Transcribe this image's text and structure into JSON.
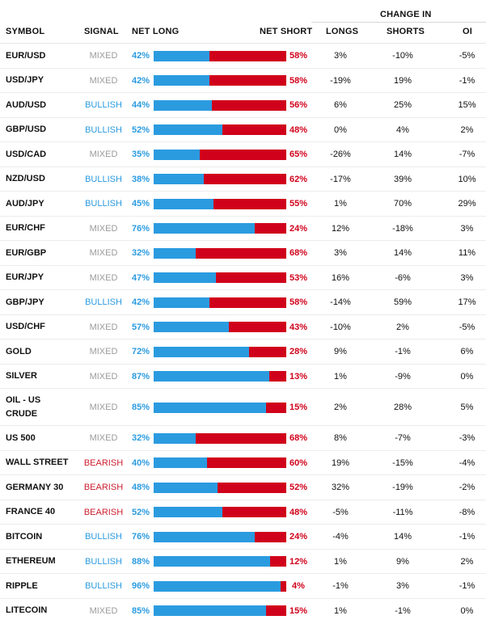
{
  "header": {
    "symbol": "SYMBOL",
    "signal": "SIGNAL",
    "net_long": "NET LONG",
    "net_short": "NET SHORT",
    "change_in": "CHANGE IN",
    "longs": "LONGS",
    "shorts": "SHORTS",
    "oi": "OI"
  },
  "colors": {
    "long": "#2b9be0",
    "short": "#d0021b",
    "mixed": "#9b9b9b",
    "bullish": "#2b9be0",
    "bearish": "#cc1f2f"
  },
  "rows": [
    {
      "symbol": "EUR/USD",
      "signal": "MIXED",
      "net_long": "42%",
      "net_short": "58%",
      "long_pct": 42,
      "longs": "3%",
      "shorts": "-10%",
      "oi": "-5%"
    },
    {
      "symbol": "USD/JPY",
      "signal": "MIXED",
      "net_long": "42%",
      "net_short": "58%",
      "long_pct": 42,
      "longs": "-19%",
      "shorts": "19%",
      "oi": "-1%"
    },
    {
      "symbol": "AUD/USD",
      "signal": "BULLISH",
      "net_long": "44%",
      "net_short": "56%",
      "long_pct": 44,
      "longs": "6%",
      "shorts": "25%",
      "oi": "15%"
    },
    {
      "symbol": "GBP/USD",
      "signal": "BULLISH",
      "net_long": "52%",
      "net_short": "48%",
      "long_pct": 52,
      "longs": "0%",
      "shorts": "4%",
      "oi": "2%"
    },
    {
      "symbol": "USD/CAD",
      "signal": "MIXED",
      "net_long": "35%",
      "net_short": "65%",
      "long_pct": 35,
      "longs": "-26%",
      "shorts": "14%",
      "oi": "-7%"
    },
    {
      "symbol": "NZD/USD",
      "signal": "BULLISH",
      "net_long": "38%",
      "net_short": "62%",
      "long_pct": 38,
      "longs": "-17%",
      "shorts": "39%",
      "oi": "10%"
    },
    {
      "symbol": "AUD/JPY",
      "signal": "BULLISH",
      "net_long": "45%",
      "net_short": "55%",
      "long_pct": 45,
      "longs": "1%",
      "shorts": "70%",
      "oi": "29%"
    },
    {
      "symbol": "EUR/CHF",
      "signal": "MIXED",
      "net_long": "76%",
      "net_short": "24%",
      "long_pct": 76,
      "longs": "12%",
      "shorts": "-18%",
      "oi": "3%"
    },
    {
      "symbol": "EUR/GBP",
      "signal": "MIXED",
      "net_long": "32%",
      "net_short": "68%",
      "long_pct": 32,
      "longs": "3%",
      "shorts": "14%",
      "oi": "11%"
    },
    {
      "symbol": "EUR/JPY",
      "signal": "MIXED",
      "net_long": "47%",
      "net_short": "53%",
      "long_pct": 47,
      "longs": "16%",
      "shorts": "-6%",
      "oi": "3%"
    },
    {
      "symbol": "GBP/JPY",
      "signal": "BULLISH",
      "net_long": "42%",
      "net_short": "58%",
      "long_pct": 42,
      "longs": "-14%",
      "shorts": "59%",
      "oi": "17%"
    },
    {
      "symbol": "USD/CHF",
      "signal": "MIXED",
      "net_long": "57%",
      "net_short": "43%",
      "long_pct": 57,
      "longs": "-10%",
      "shorts": "2%",
      "oi": "-5%"
    },
    {
      "symbol": "GOLD",
      "signal": "MIXED",
      "net_long": "72%",
      "net_short": "28%",
      "long_pct": 72,
      "longs": "9%",
      "shorts": "-1%",
      "oi": "6%"
    },
    {
      "symbol": "SILVER",
      "signal": "MIXED",
      "net_long": "87%",
      "net_short": "13%",
      "long_pct": 87,
      "longs": "1%",
      "shorts": "-9%",
      "oi": "0%"
    },
    {
      "symbol": "OIL - US CRUDE",
      "signal": "MIXED",
      "net_long": "85%",
      "net_short": "15%",
      "long_pct": 85,
      "longs": "2%",
      "shorts": "28%",
      "oi": "5%"
    },
    {
      "symbol": "US 500",
      "signal": "MIXED",
      "net_long": "32%",
      "net_short": "68%",
      "long_pct": 32,
      "longs": "8%",
      "shorts": "-7%",
      "oi": "-3%"
    },
    {
      "symbol": "WALL STREET",
      "signal": "BEARISH",
      "net_long": "40%",
      "net_short": "60%",
      "long_pct": 40,
      "longs": "19%",
      "shorts": "-15%",
      "oi": "-4%"
    },
    {
      "symbol": "GERMANY 30",
      "signal": "BEARISH",
      "net_long": "48%",
      "net_short": "52%",
      "long_pct": 48,
      "longs": "32%",
      "shorts": "-19%",
      "oi": "-2%"
    },
    {
      "symbol": "FRANCE 40",
      "signal": "BEARISH",
      "net_long": "52%",
      "net_short": "48%",
      "long_pct": 52,
      "longs": "-5%",
      "shorts": "-11%",
      "oi": "-8%"
    },
    {
      "symbol": "BITCOIN",
      "signal": "BULLISH",
      "net_long": "76%",
      "net_short": "24%",
      "long_pct": 76,
      "longs": "-4%",
      "shorts": "14%",
      "oi": "-1%"
    },
    {
      "symbol": "ETHEREUM",
      "signal": "BULLISH",
      "net_long": "88%",
      "net_short": "12%",
      "long_pct": 88,
      "longs": "1%",
      "shorts": "9%",
      "oi": "2%"
    },
    {
      "symbol": "RIPPLE",
      "signal": "BULLISH",
      "net_long": "96%",
      "net_short": "4%",
      "long_pct": 96,
      "longs": "-1%",
      "shorts": "3%",
      "oi": "-1%"
    },
    {
      "symbol": "LITECOIN",
      "signal": "MIXED",
      "net_long": "85%",
      "net_short": "15%",
      "long_pct": 85,
      "longs": "1%",
      "shorts": "-1%",
      "oi": "0%"
    }
  ]
}
